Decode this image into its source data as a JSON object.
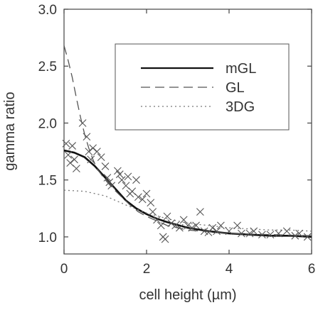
{
  "chart_data": {
    "type": "line",
    "title": "",
    "xlabel": "cell height (µm)",
    "ylabel": "gamma ratio",
    "xlim": [
      0,
      6
    ],
    "ylim": [
      0.85,
      3.0
    ],
    "xticks": [
      0,
      2,
      4,
      6
    ],
    "yticks": [
      1.0,
      1.5,
      2.0,
      2.5,
      3.0
    ],
    "xtick_labels": [
      "0",
      "2",
      "4",
      "6"
    ],
    "ytick_labels": [
      "1.0",
      "1.5",
      "2.0",
      "2.5",
      "3.0"
    ],
    "grid": false,
    "legend": {
      "placement": "top-right"
    },
    "series": [
      {
        "name": "mGL",
        "style": "solid",
        "color": "#111111",
        "x": [
          0,
          0.25,
          0.5,
          0.75,
          1.0,
          1.25,
          1.5,
          1.75,
          2.0,
          2.25,
          2.5,
          3.0,
          3.5,
          4.0,
          4.5,
          5.0,
          5.5,
          6.0
        ],
        "y": [
          1.76,
          1.74,
          1.7,
          1.62,
          1.52,
          1.42,
          1.32,
          1.25,
          1.2,
          1.16,
          1.13,
          1.08,
          1.05,
          1.03,
          1.02,
          1.01,
          1.01,
          1.0
        ]
      },
      {
        "name": "GL",
        "style": "dashed",
        "color": "#555555",
        "x": [
          0,
          0.1,
          0.2,
          0.3,
          0.4,
          0.5,
          0.6,
          0.7,
          0.8,
          1.0,
          1.2,
          1.4,
          1.6,
          1.8,
          2.0,
          2.5,
          3.0,
          4.0,
          5.0,
          6.0
        ],
        "y": [
          2.68,
          2.55,
          2.4,
          2.22,
          2.05,
          1.9,
          1.78,
          1.68,
          1.6,
          1.5,
          1.42,
          1.35,
          1.28,
          1.22,
          1.18,
          1.1,
          1.06,
          1.03,
          1.02,
          1.01
        ]
      },
      {
        "name": "3DG",
        "style": "dotted",
        "color": "#777777",
        "x": [
          0,
          0.5,
          1.0,
          1.5,
          2.0,
          2.5,
          3.0,
          3.5,
          4.0,
          4.5,
          5.0,
          5.5,
          6.0
        ],
        "y": [
          1.41,
          1.4,
          1.36,
          1.28,
          1.21,
          1.16,
          1.12,
          1.1,
          1.08,
          1.07,
          1.06,
          1.06,
          1.05
        ]
      }
    ],
    "scatter": {
      "marker": "x",
      "color": "#555555",
      "points": [
        [
          0.05,
          1.82
        ],
        [
          0.1,
          1.72
        ],
        [
          0.15,
          1.65
        ],
        [
          0.2,
          1.8
        ],
        [
          0.25,
          1.68
        ],
        [
          0.3,
          1.6
        ],
        [
          0.45,
          2.0
        ],
        [
          0.55,
          1.88
        ],
        [
          0.6,
          1.75
        ],
        [
          0.65,
          1.68
        ],
        [
          0.7,
          1.78
        ],
        [
          0.8,
          1.75
        ],
        [
          0.9,
          1.7
        ],
        [
          1.0,
          1.62
        ],
        [
          1.05,
          1.52
        ],
        [
          1.1,
          1.48
        ],
        [
          1.15,
          1.45
        ],
        [
          1.3,
          1.58
        ],
        [
          1.35,
          1.55
        ],
        [
          1.4,
          1.5
        ],
        [
          1.5,
          1.45
        ],
        [
          1.55,
          1.53
        ],
        [
          1.6,
          1.38
        ],
        [
          1.65,
          1.4
        ],
        [
          1.75,
          1.5
        ],
        [
          1.8,
          1.35
        ],
        [
          1.9,
          1.33
        ],
        [
          2.0,
          1.38
        ],
        [
          2.1,
          1.3
        ],
        [
          2.15,
          1.22
        ],
        [
          2.25,
          1.15
        ],
        [
          2.35,
          1.1
        ],
        [
          2.4,
          1.0
        ],
        [
          2.45,
          0.98
        ],
        [
          2.5,
          1.18
        ],
        [
          2.6,
          1.12
        ],
        [
          2.7,
          1.1
        ],
        [
          2.8,
          1.08
        ],
        [
          2.9,
          1.15
        ],
        [
          3.0,
          1.1
        ],
        [
          3.1,
          1.08
        ],
        [
          3.2,
          1.1
        ],
        [
          3.3,
          1.22
        ],
        [
          3.4,
          1.05
        ],
        [
          3.5,
          1.04
        ],
        [
          3.6,
          1.08
        ],
        [
          3.7,
          1.05
        ],
        [
          3.8,
          1.1
        ],
        [
          4.0,
          1.05
        ],
        [
          4.2,
          1.1
        ],
        [
          4.3,
          1.03
        ],
        [
          4.5,
          1.03
        ],
        [
          4.6,
          1.05
        ],
        [
          4.8,
          1.02
        ],
        [
          5.0,
          1.02
        ],
        [
          5.2,
          1.03
        ],
        [
          5.4,
          1.05
        ],
        [
          5.6,
          1.01
        ],
        [
          5.7,
          1.03
        ],
        [
          5.9,
          1.0
        ]
      ]
    }
  }
}
